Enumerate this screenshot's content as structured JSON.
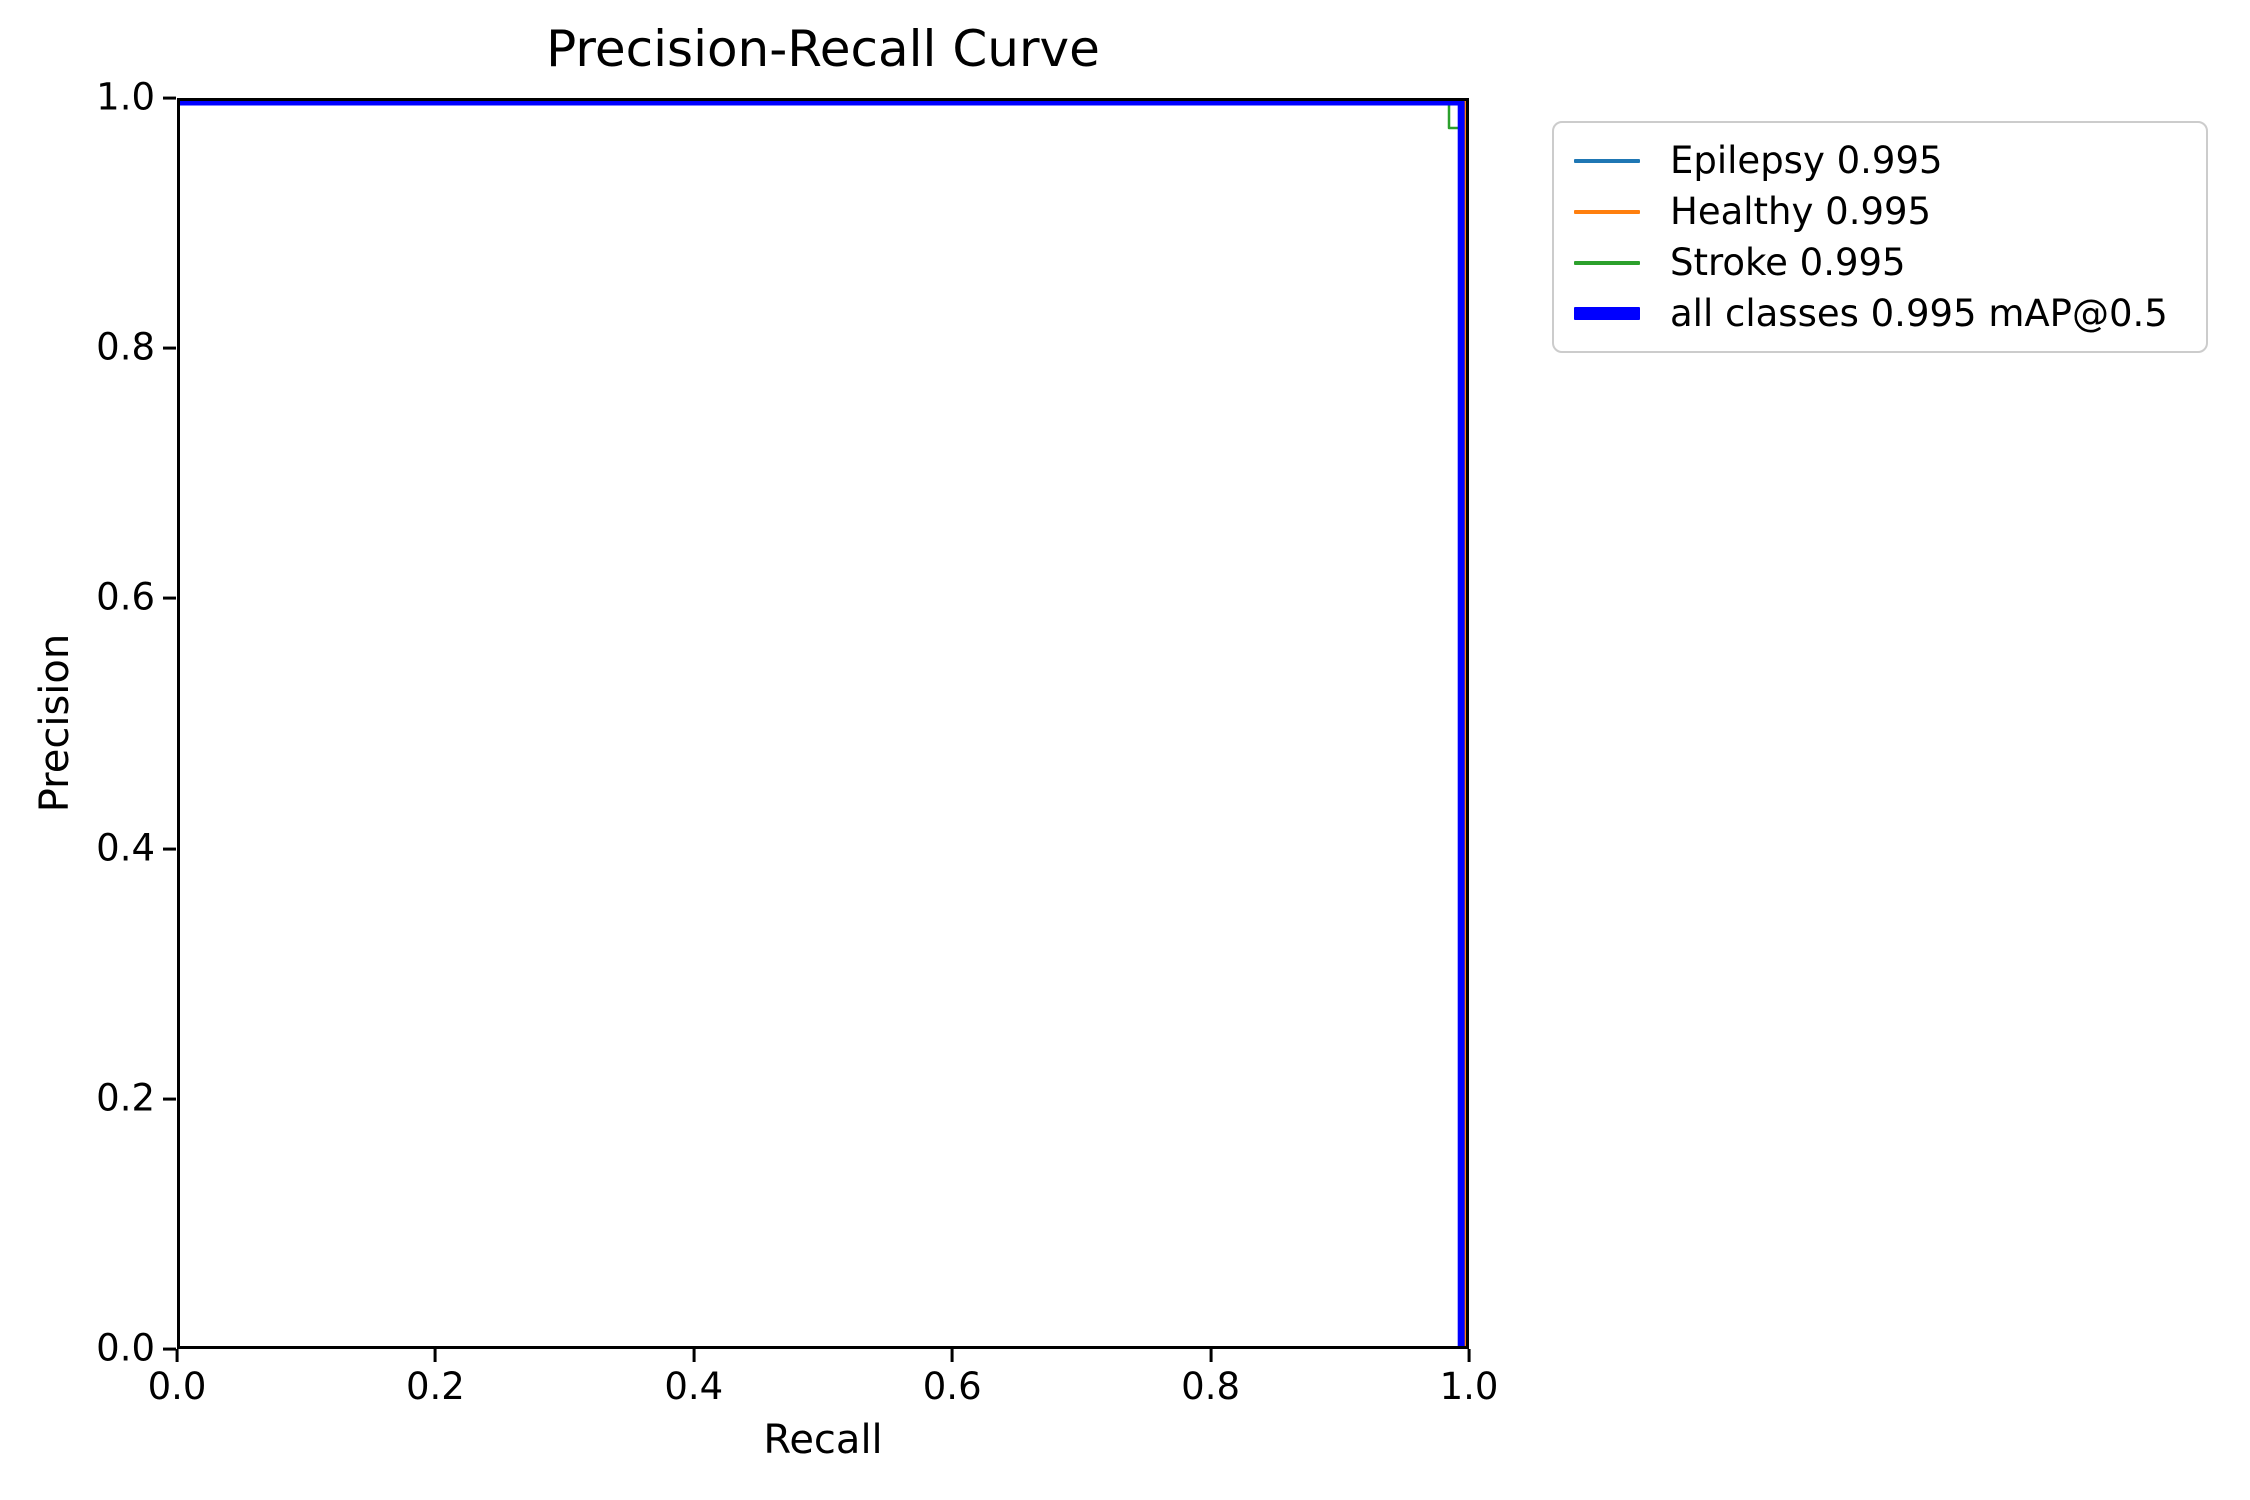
{
  "chart_data": {
    "type": "line",
    "title": "Precision-Recall Curve",
    "xlabel": "Recall",
    "ylabel": "Precision",
    "xlim": [
      0.0,
      1.0
    ],
    "ylim": [
      0.0,
      1.0
    ],
    "x_ticks": [
      "0.0",
      "0.2",
      "0.4",
      "0.6",
      "0.8",
      "1.0"
    ],
    "y_ticks": [
      "0.0",
      "0.2",
      "0.4",
      "0.6",
      "0.8",
      "1.0"
    ],
    "grid": false,
    "legend": {
      "position": "outside upper right",
      "border_color": "#cccccc"
    },
    "series": [
      {
        "id": "epilepsy",
        "name": "Epilepsy 0.995",
        "ap": 0.995,
        "color": "#1f77b4",
        "thick": false,
        "points": [
          [
            0.0,
            1.0
          ],
          [
            0.994,
            1.0
          ],
          [
            0.994,
            0.0
          ]
        ]
      },
      {
        "id": "healthy",
        "name": "Healthy 0.995",
        "ap": 0.995,
        "color": "#ff7f0e",
        "thick": false,
        "points": [
          [
            0.0,
            1.0
          ],
          [
            0.997,
            1.0
          ],
          [
            0.997,
            0.0
          ]
        ]
      },
      {
        "id": "stroke",
        "name": "Stroke 0.995",
        "ap": 0.995,
        "color": "#2ca02c",
        "thick": false,
        "points": [
          [
            0.0,
            1.0
          ],
          [
            0.9845,
            1.0
          ],
          [
            0.9845,
            0.976
          ],
          [
            0.993,
            0.976
          ],
          [
            0.993,
            0.0
          ]
        ]
      },
      {
        "id": "all-classes",
        "name": "all classes 0.995 mAP@0.5",
        "map_at_0_5": 0.995,
        "color": "#0000ff",
        "thick": true,
        "points": [
          [
            0.0,
            1.0
          ],
          [
            0.994,
            1.0
          ],
          [
            0.994,
            0.0
          ]
        ]
      }
    ]
  }
}
